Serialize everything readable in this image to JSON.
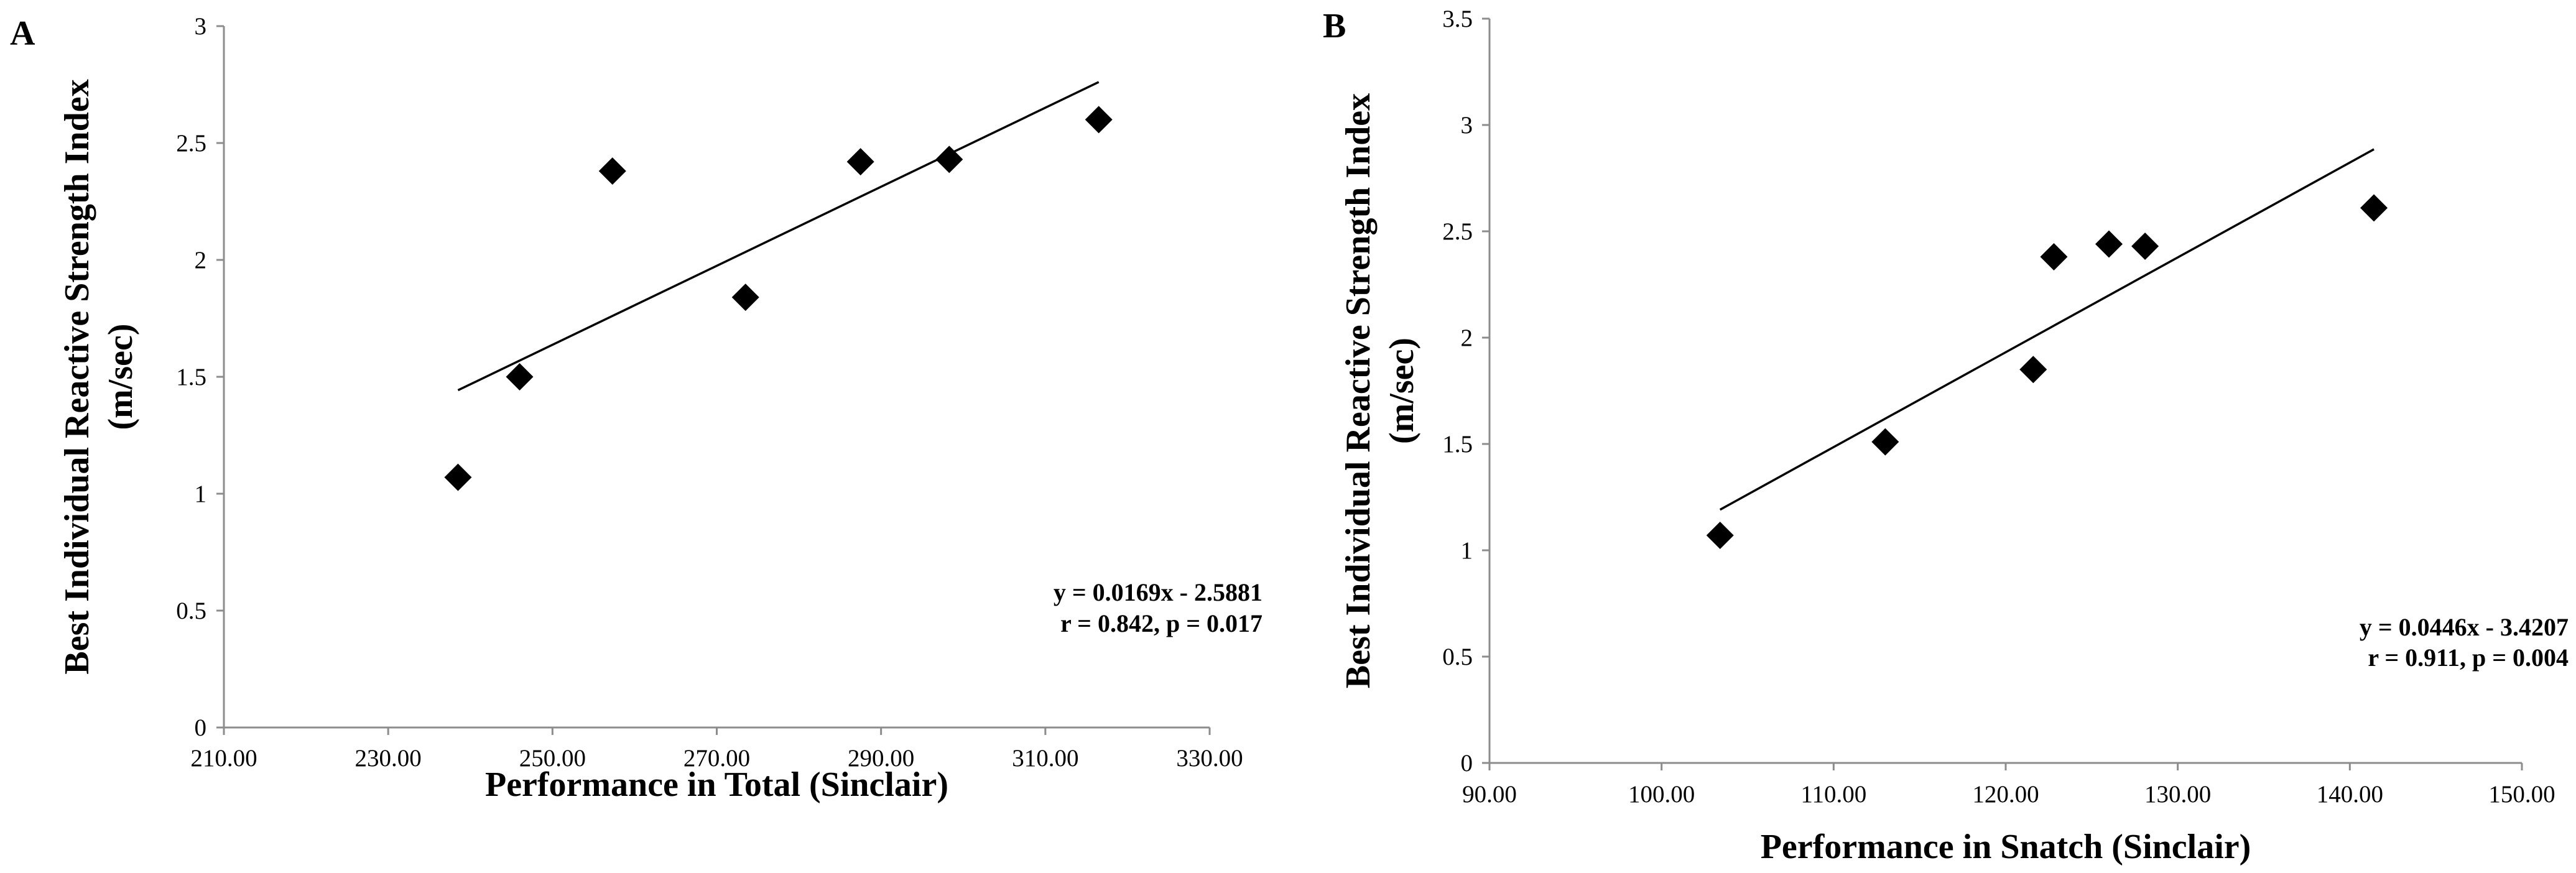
{
  "chart_data": [
    {
      "type": "scatter",
      "panel_label": "A",
      "xlabel": "Performance in Total (Sinclair)",
      "ylabel_lines": [
        "Best Individual Reactive Strength Index",
        "(m/sec)"
      ],
      "xlim": [
        210,
        330
      ],
      "ylim": [
        0,
        3
      ],
      "x_ticks": [
        210,
        230,
        250,
        270,
        290,
        310,
        330
      ],
      "x_tick_labels": [
        "210.00",
        "230.00",
        "250.00",
        "270.00",
        "290.00",
        "310.00",
        "330.00"
      ],
      "y_ticks": [
        0,
        0.5,
        1,
        1.5,
        2,
        2.5,
        3
      ],
      "y_tick_labels": [
        "0",
        "0.5",
        "1",
        "1.5",
        "2",
        "2.5",
        "3"
      ],
      "points": [
        {
          "x": 238.5,
          "y": 1.07
        },
        {
          "x": 246.0,
          "y": 1.5
        },
        {
          "x": 257.3,
          "y": 2.38
        },
        {
          "x": 273.5,
          "y": 1.84
        },
        {
          "x": 287.5,
          "y": 2.42
        },
        {
          "x": 298.3,
          "y": 2.43
        },
        {
          "x": 316.5,
          "y": 2.6
        }
      ],
      "marker": "diamond",
      "trendline": {
        "slope": 0.0169,
        "intercept": -2.5881,
        "x_start": 238.5,
        "x_end": 316.5
      },
      "annotation": [
        "y = 0.0169x - 2.5881",
        "r = 0.842, p = 0.017"
      ],
      "grid": false,
      "legend": "none"
    },
    {
      "type": "scatter",
      "panel_label": "B",
      "xlabel": "Performance in Snatch (Sinclair)",
      "ylabel_lines": [
        "Best Individual Reactive Strength Index",
        "(m/sec)"
      ],
      "xlim": [
        90,
        150
      ],
      "ylim": [
        0,
        3.5
      ],
      "x_ticks": [
        90,
        100,
        110,
        120,
        130,
        140,
        150
      ],
      "x_tick_labels": [
        "90.00",
        "100.00",
        "110.00",
        "120.00",
        "130.00",
        "140.00",
        "150.00"
      ],
      "y_ticks": [
        0,
        0.5,
        1,
        1.5,
        2,
        2.5,
        3,
        3.5
      ],
      "y_tick_labels": [
        "0",
        "0.5",
        "1",
        "1.5",
        "2",
        "2.5",
        "3",
        "3.5"
      ],
      "points": [
        {
          "x": 103.4,
          "y": 1.07
        },
        {
          "x": 113.0,
          "y": 1.51
        },
        {
          "x": 121.6,
          "y": 1.85
        },
        {
          "x": 122.8,
          "y": 2.38
        },
        {
          "x": 126.0,
          "y": 2.44
        },
        {
          "x": 128.1,
          "y": 2.43
        },
        {
          "x": 141.4,
          "y": 2.61
        }
      ],
      "marker": "diamond",
      "trendline": {
        "slope": 0.0446,
        "intercept": -3.4207,
        "x_start": 103.4,
        "x_end": 141.4
      },
      "annotation": [
        "y = 0.0446x - 3.4207",
        "r = 0.911, p = 0.004"
      ],
      "grid": false,
      "legend": "none"
    }
  ]
}
